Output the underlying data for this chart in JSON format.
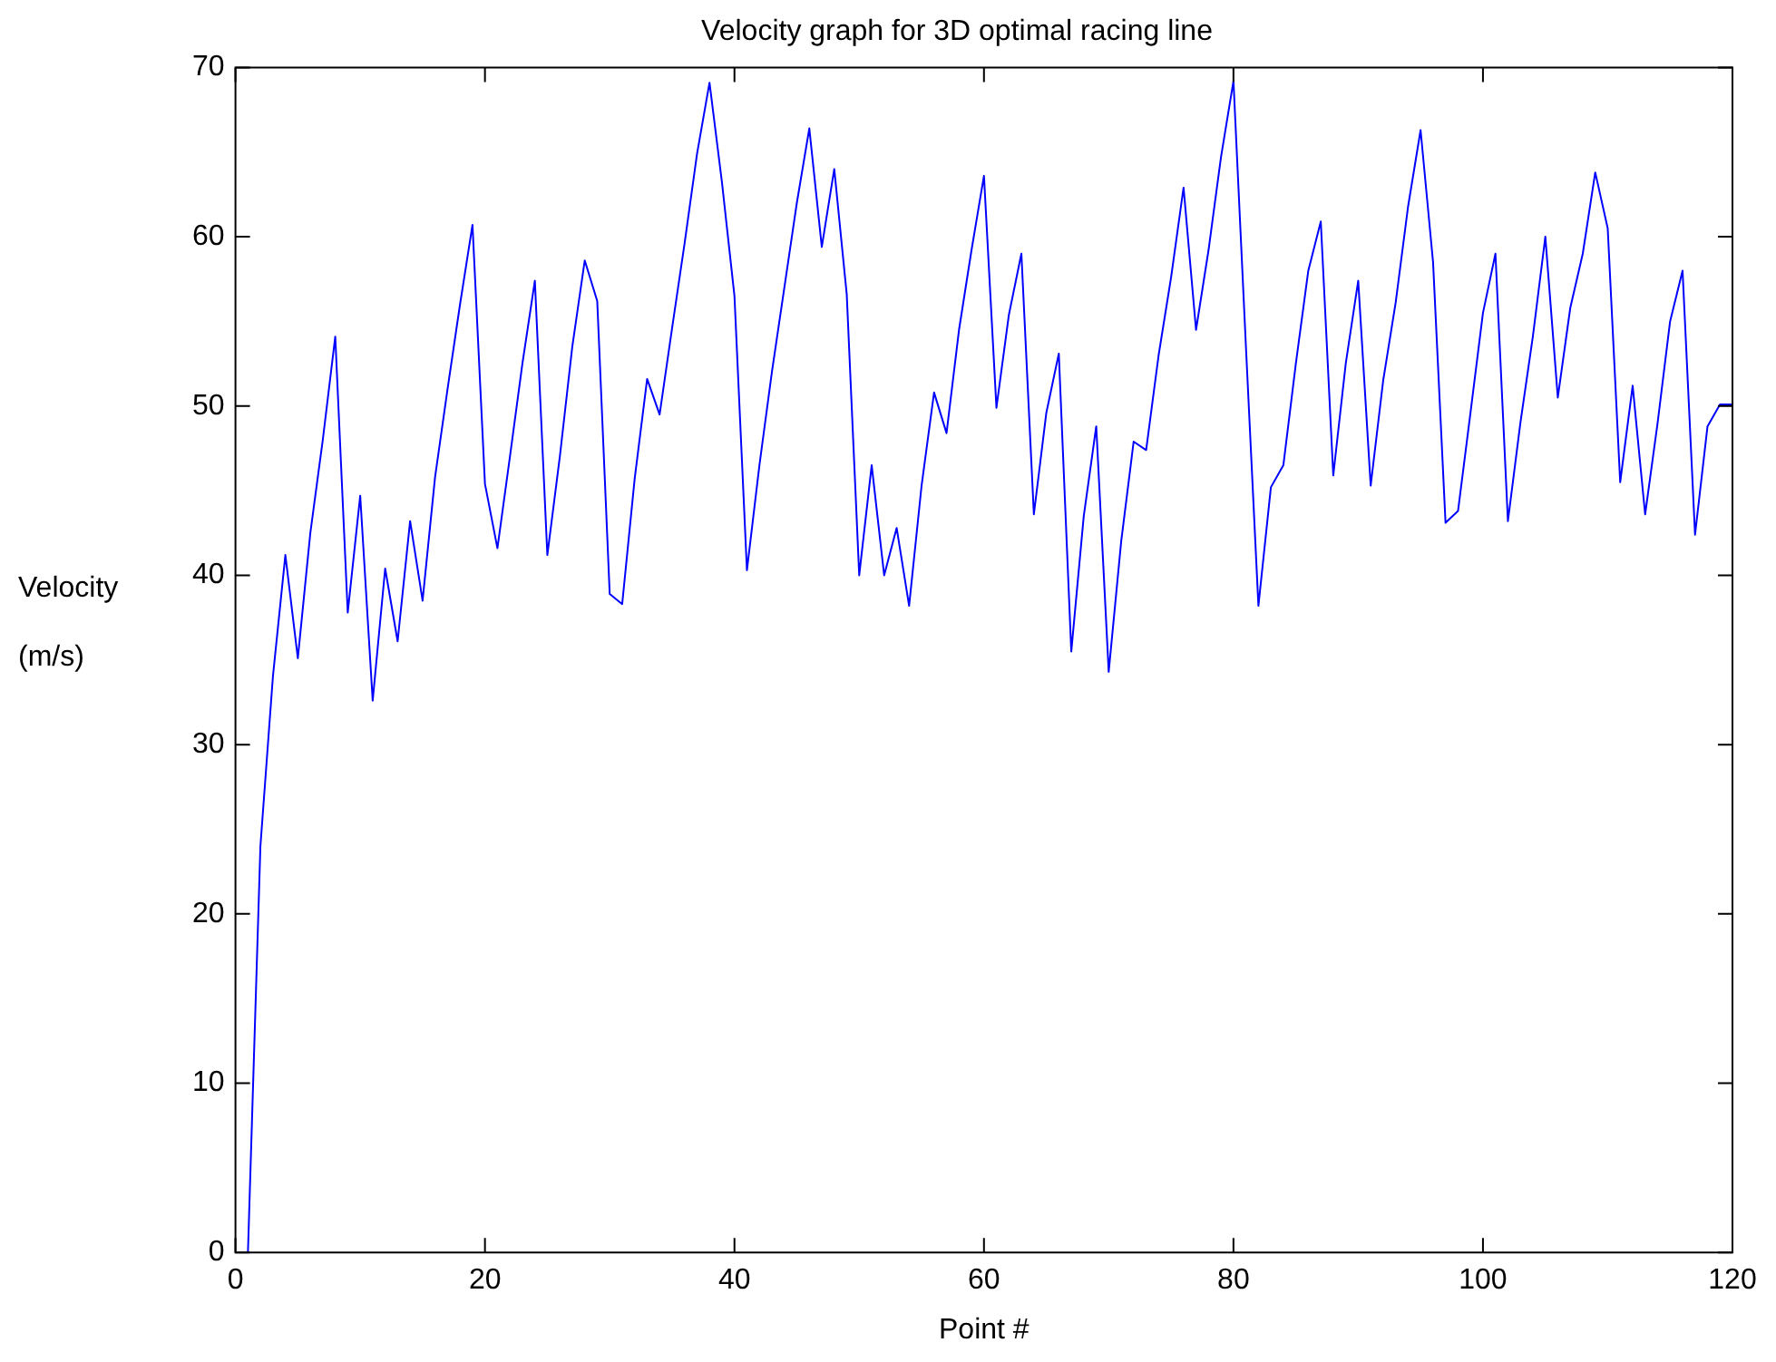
{
  "chart_data": {
    "type": "line",
    "title": "Velocity graph for 3D optimal racing line",
    "xlabel": "Point #",
    "ylabel": "Velocity (m/s)",
    "x": [
      1,
      2,
      3,
      4,
      5,
      6,
      7,
      8,
      9,
      10,
      11,
      12,
      13,
      14,
      15,
      16,
      17,
      18,
      19,
      20,
      21,
      22,
      23,
      24,
      25,
      26,
      27,
      28,
      29,
      30,
      31,
      32,
      33,
      34,
      35,
      36,
      37,
      38,
      39,
      40,
      41,
      42,
      43,
      44,
      45,
      46,
      47,
      48,
      49,
      50,
      51,
      52,
      53,
      54,
      55,
      56,
      57,
      58,
      59,
      60,
      61,
      62,
      63,
      64,
      65,
      66,
      67,
      68,
      69,
      70,
      71,
      72,
      73,
      74,
      75,
      76,
      77,
      78,
      79,
      80,
      81,
      82,
      83,
      84,
      85,
      86,
      87,
      88,
      89,
      90,
      91,
      92,
      93,
      94,
      95,
      96,
      97,
      98,
      99,
      100,
      101,
      102,
      103,
      104,
      105,
      106,
      107,
      108,
      109,
      110,
      111,
      112,
      113,
      114,
      115,
      116,
      117,
      118,
      119,
      120
    ],
    "series": [
      {
        "color": "#0000ff",
        "values": [
          0,
          24,
          34,
          41.2,
          35.1,
          42.5,
          48,
          54.1,
          37.8,
          44.7,
          32.6,
          40.4,
          36.1,
          43.2,
          38.5,
          45.8,
          51,
          56,
          60.7,
          45.4,
          41.6,
          47,
          52.5,
          57.4,
          41.2,
          47,
          53.5,
          58.6,
          56.2,
          38.9,
          38.3,
          45.7,
          51.6,
          49.5,
          54.6,
          59.6,
          64.9,
          69.1,
          63.2,
          56.5,
          40.3,
          46.5,
          52,
          57,
          62,
          66.4,
          59.4,
          64,
          56.6,
          40,
          46.5,
          40,
          42.8,
          38.2,
          45.3,
          50.8,
          48.4,
          54.5,
          59.2,
          63.6,
          49.9,
          55.4,
          59,
          43.6,
          49.6,
          53.1,
          35.5,
          43.5,
          48.8,
          34.3,
          42,
          47.9,
          47.4,
          53,
          57.6,
          62.9,
          54.5,
          59.2,
          64.7,
          69.2,
          53.5,
          38.2,
          45.2,
          46.5,
          52.5,
          58,
          60.9,
          45.9,
          52.5,
          57.4,
          45.3,
          51.5,
          56.1,
          61.8,
          66.3,
          58.5,
          43.1,
          43.8,
          49.6,
          55.5,
          59,
          43.2,
          49,
          54.1,
          60,
          50.5,
          55.8,
          59,
          63.8,
          60.5,
          45.5,
          51.2,
          43.6,
          49,
          55,
          58,
          42.4,
          48.8,
          50.1,
          50.1
        ]
      }
    ],
    "xlim": [
      0,
      120
    ],
    "xticks": [
      0,
      20,
      40,
      60,
      80,
      100,
      120
    ],
    "ylim": [
      0,
      70
    ],
    "yticks": [
      0,
      10,
      20,
      30,
      40,
      50,
      60,
      70
    ],
    "marker": "none",
    "line_style": "solid"
  }
}
